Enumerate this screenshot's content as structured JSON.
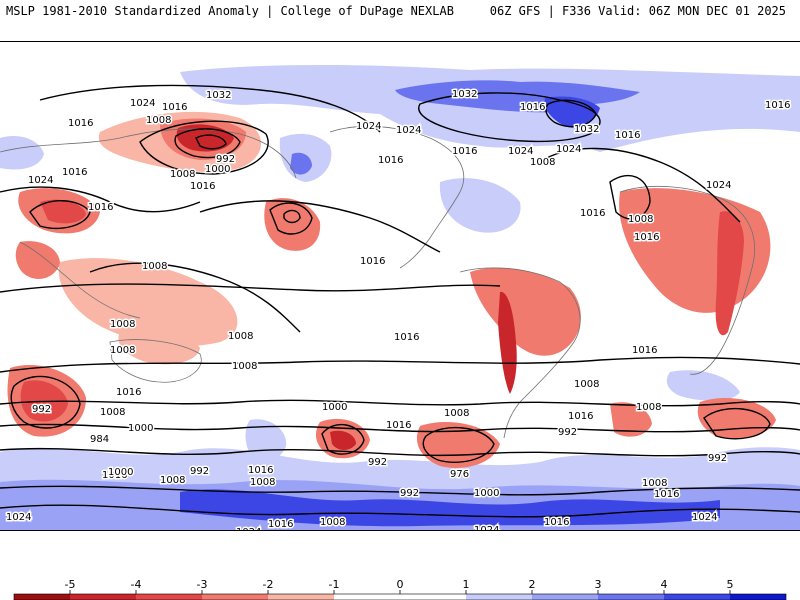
{
  "header": {
    "title": "MSLP 1981-2010 Standardized Anomaly | College of DuPage NEXLAB",
    "run_info": "06Z GFS | F336 Valid: 06Z MON DEC 01 2025"
  },
  "colors": {
    "neg5": "#9b0f10",
    "neg4": "#c9262b",
    "neg3": "#e24848",
    "neg2": "#f07a6e",
    "neg1": "#f9b5a6",
    "neutral": "#ffffff",
    "pos1": "#c8cdfa",
    "pos2": "#9aa2f5",
    "pos3": "#6a74ee",
    "pos4": "#3c46e4",
    "pos5": "#1018cc",
    "land_line": "#707070",
    "isobar": "#000000"
  },
  "isobar_labels": [
    {
      "text": "1024"
    },
    {
      "text": "1016"
    },
    {
      "text": "1032"
    },
    {
      "text": "1008"
    },
    {
      "text": "1016"
    },
    {
      "text": "992"
    },
    {
      "text": "1000"
    },
    {
      "text": "1016"
    },
    {
      "text": "1024"
    },
    {
      "text": "1016"
    },
    {
      "text": "1008"
    },
    {
      "text": "1016"
    },
    {
      "text": "1024"
    },
    {
      "text": "1016"
    },
    {
      "text": "1024"
    },
    {
      "text": "1032"
    },
    {
      "text": "1016"
    },
    {
      "text": "1024"
    },
    {
      "text": "1008"
    },
    {
      "text": "1032"
    },
    {
      "text": "1024"
    },
    {
      "text": "1016"
    },
    {
      "text": "1016"
    },
    {
      "text": "1008"
    },
    {
      "text": "1016"
    },
    {
      "text": "1024"
    },
    {
      "text": "1016"
    },
    {
      "text": "1008"
    },
    {
      "text": "1008"
    },
    {
      "text": "1008"
    },
    {
      "text": "1008"
    },
    {
      "text": "1016"
    },
    {
      "text": "1016"
    },
    {
      "text": "992"
    },
    {
      "text": "1008"
    },
    {
      "text": "1000"
    },
    {
      "text": "984"
    },
    {
      "text": "1016"
    },
    {
      "text": "1000"
    },
    {
      "text": "992"
    },
    {
      "text": "976"
    },
    {
      "text": "1016"
    },
    {
      "text": "1008"
    },
    {
      "text": "1008"
    },
    {
      "text": "992"
    },
    {
      "text": "1008"
    },
    {
      "text": "1000"
    },
    {
      "text": "992"
    },
    {
      "text": "1000"
    },
    {
      "text": "1016"
    },
    {
      "text": "1008"
    },
    {
      "text": "992"
    },
    {
      "text": "1016"
    },
    {
      "text": "1008"
    },
    {
      "text": "1016"
    },
    {
      "text": "1008"
    },
    {
      "text": "1016"
    },
    {
      "text": "1024"
    },
    {
      "text": "1024"
    },
    {
      "text": "1016"
    },
    {
      "text": "1008"
    },
    {
      "text": "1024"
    },
    {
      "text": "1016"
    },
    {
      "text": "1024"
    },
    {
      "text": "1008"
    },
    {
      "text": "992"
    },
    {
      "text": "1016"
    },
    {
      "text": "1016"
    }
  ],
  "colorbar": {
    "ticks": [
      "-5",
      "-4",
      "-3",
      "-2",
      "-1",
      "0",
      "1",
      "2",
      "3",
      "4",
      "5"
    ]
  }
}
